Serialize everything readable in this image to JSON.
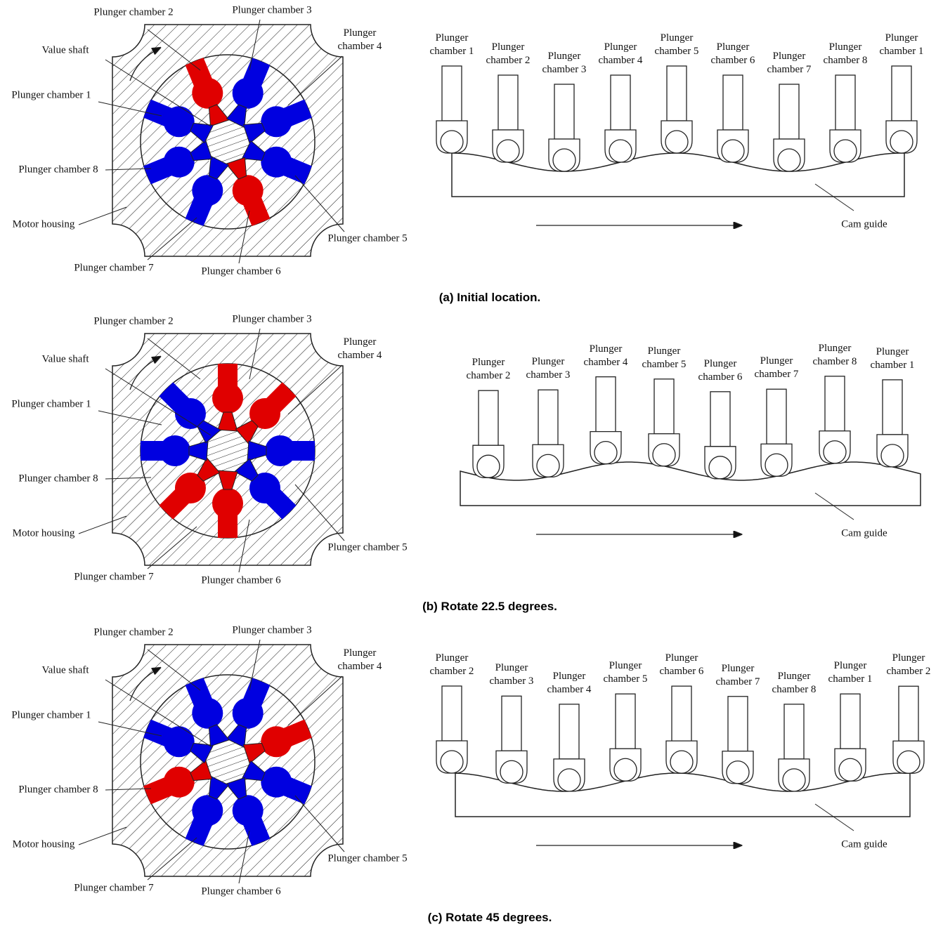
{
  "panels": [
    {
      "caption": "(a) Initial location.",
      "motor_labels": [
        "Plunger chamber 2",
        "Plunger chamber 3",
        "Plunger chamber 4",
        "Value shaft",
        "Plunger chamber 1",
        "Plunger chamber 8",
        "Motor housing",
        "Plunger chamber 7",
        "Plunger chamber 6",
        "Plunger chamber 5"
      ],
      "cam_labels": [
        "Plunger chamber 1",
        "Plunger chamber 2",
        "Plunger chamber 3",
        "Plunger chamber 4",
        "Plunger chamber 5",
        "Plunger chamber 6",
        "Plunger chamber 7",
        "Plunger chamber 8",
        "Plunger chamber 1"
      ],
      "cam_guide": "Cam guide"
    },
    {
      "caption": "(b) Rotate 22.5 degrees.",
      "motor_labels": [
        "Plunger chamber 2",
        "Plunger chamber 3",
        "Plunger chamber 4",
        "Value shaft",
        "Plunger chamber 1",
        "Plunger chamber 8",
        "Motor housing",
        "Plunger chamber 7",
        "Plunger chamber 6",
        "Plunger chamber 5"
      ],
      "cam_labels": [
        "Plunger chamber 2",
        "Plunger chamber 3",
        "Plunger chamber 4",
        "Plunger chamber 5",
        "Plunger chamber 6",
        "Plunger chamber 7",
        "Plunger chamber 8",
        "Plunger chamber 1"
      ],
      "cam_guide": "Cam guide"
    },
    {
      "caption": "(c) Rotate 45 degrees.",
      "motor_labels": [
        "Plunger chamber 2",
        "Plunger chamber 3",
        "Plunger chamber 4",
        "Value shaft",
        "Plunger chamber 1",
        "Plunger chamber 8",
        "Motor housing",
        "Plunger chamber 7",
        "Plunger chamber 6",
        "Plunger chamber 5"
      ],
      "cam_labels": [
        "Plunger chamber 2",
        "Plunger chamber 3",
        "Plunger chamber 4",
        "Plunger chamber 5",
        "Plunger chamber 6",
        "Plunger chamber 7",
        "Plunger chamber 8",
        "Plunger chamber 1",
        "Plunger chamber 2"
      ],
      "cam_guide": "Cam guide"
    }
  ]
}
